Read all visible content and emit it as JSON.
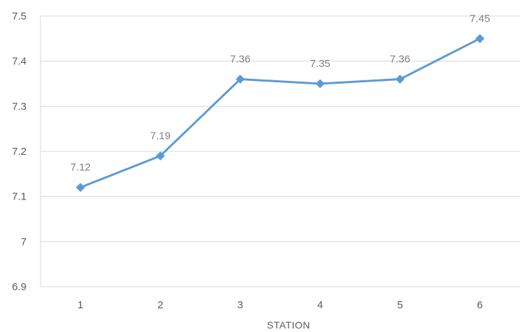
{
  "chart_data": {
    "type": "line",
    "title": "",
    "xlabel": "STATION",
    "ylabel": "",
    "categories": [
      "1",
      "2",
      "3",
      "4",
      "5",
      "6"
    ],
    "series": [
      {
        "values": [
          7.12,
          7.19,
          7.36,
          7.35,
          7.36,
          7.45
        ]
      }
    ],
    "data_labels": [
      "7.12",
      "7.19",
      "7.36",
      "7.35",
      "7.36",
      "7.45"
    ],
    "ylim": [
      6.9,
      7.5
    ],
    "yticks": [
      6.9,
      7.0,
      7.1,
      7.2,
      7.3,
      7.4,
      7.5
    ],
    "ytick_labels": [
      "6.9",
      "7",
      "7.1",
      "7.2",
      "7.3",
      "7.4",
      "7.5"
    ],
    "grid": true,
    "legend": "none",
    "colors": {
      "line": "#5b9bd5",
      "grid": "#d9d9d9",
      "tick_text": "#595959",
      "label_text": "#7f7f7f"
    },
    "marker": "diamond"
  }
}
